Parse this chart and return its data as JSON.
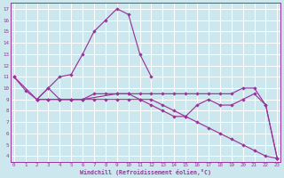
{
  "bg_color": "#cce8ee",
  "line_color": "#993399",
  "grid_color": "#ffffff",
  "xlabel": "Windchill (Refroidissement éolien,°C)",
  "ylabel_vals": [
    4,
    5,
    6,
    7,
    8,
    9,
    10,
    11,
    12,
    13,
    14,
    15,
    16,
    17
  ],
  "xlabel_vals": [
    0,
    1,
    2,
    3,
    4,
    5,
    6,
    7,
    8,
    9,
    10,
    11,
    12,
    13,
    14,
    15,
    16,
    17,
    18,
    19,
    20,
    21,
    22,
    23
  ],
  "ylim": [
    3.5,
    17.5
  ],
  "xlim": [
    -0.3,
    23.3
  ],
  "lines": [
    {
      "x": [
        0,
        1,
        2,
        3,
        4,
        5,
        6,
        7,
        8,
        9,
        10,
        11,
        12
      ],
      "y": [
        11,
        9.8,
        9,
        10,
        11,
        11.2,
        13,
        15,
        16,
        17,
        16.5,
        13,
        11
      ]
    },
    {
      "x": [
        0,
        2,
        3,
        4,
        5,
        6,
        9,
        10,
        11,
        12,
        13,
        14,
        15,
        16,
        17,
        18,
        19,
        20,
        21,
        22,
        23
      ],
      "y": [
        11,
        9,
        10,
        9,
        9,
        9,
        9.5,
        9.5,
        9.5,
        9.5,
        9.5,
        9.5,
        9.5,
        9.5,
        9.5,
        9.5,
        9.5,
        10,
        10,
        8.5,
        3.8
      ]
    },
    {
      "x": [
        2,
        3,
        4,
        5,
        6,
        7,
        8,
        9,
        10,
        11,
        12,
        13,
        14,
        15,
        16,
        17,
        18,
        19,
        20,
        21,
        22,
        23
      ],
      "y": [
        9,
        9,
        9,
        9,
        9,
        9.5,
        9.5,
        9.5,
        9.5,
        9,
        8.5,
        8,
        7.5,
        7.5,
        8.5,
        9,
        8.5,
        8.5,
        9,
        9.5,
        8.5,
        3.8
      ]
    },
    {
      "x": [
        2,
        3,
        4,
        5,
        6,
        7,
        8,
        9,
        10,
        11,
        12,
        13,
        14,
        15,
        16,
        17,
        18,
        19,
        20,
        21,
        22,
        23
      ],
      "y": [
        9,
        9,
        9,
        9,
        9,
        9,
        9,
        9,
        9,
        9,
        9,
        8.5,
        8,
        7.5,
        7,
        6.5,
        6,
        5.5,
        5,
        4.5,
        4,
        3.8
      ]
    }
  ]
}
